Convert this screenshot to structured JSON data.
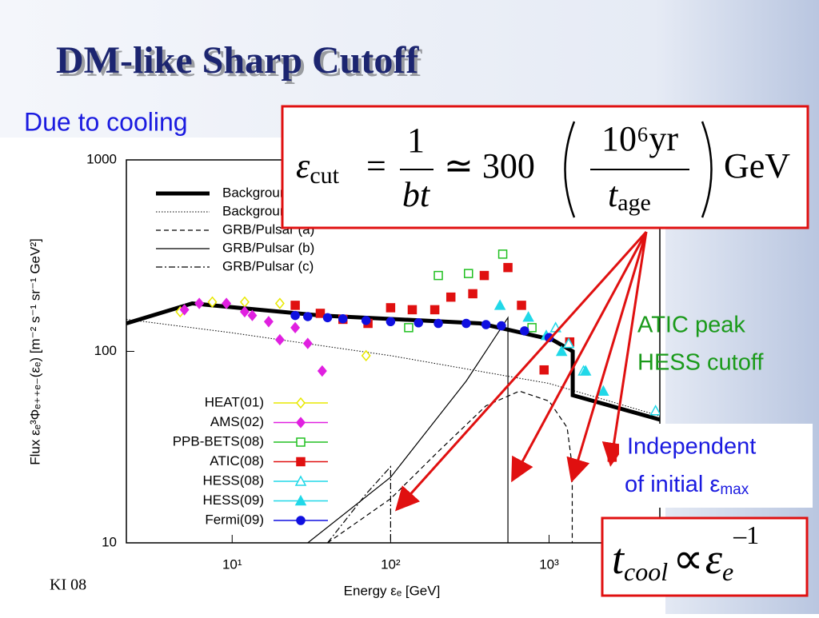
{
  "slide": {
    "title": "DM-like Sharp Cutoff",
    "subtitle": "Due to cooling",
    "footer": "KI 08",
    "note_green": [
      "ATIC peak",
      "HESS cutoff"
    ],
    "note_box": {
      "line1": "Independent",
      "line2": "of initial ε",
      "line2_sub": "max"
    },
    "formula": {
      "lhs": "ε",
      "lhs_sub": "cut",
      "eq": "=",
      "num1": "1",
      "den1": "bt",
      "approx": "≃ 300",
      "num2": "10⁶yr",
      "den2": "t",
      "den2_sub": "age",
      "unit": "GeV"
    },
    "cooling": {
      "t": "t",
      "t_sub": "cool",
      "prop": "∝",
      "e": "ε",
      "e_sub": "e",
      "e_sup": "–1"
    }
  },
  "chart_data": {
    "type": "line",
    "x_label": "Energy εₑ [GeV]",
    "y_label": "Flux εₑ³Φₑ₊₊ₑ₋(εₑ) [m⁻² s⁻¹ sr⁻¹ GeV²]",
    "log_x": true,
    "log_y": true,
    "xlim": [
      2.15,
      5000
    ],
    "ylim": [
      10,
      1000
    ],
    "xticks": [
      {
        "value": 10,
        "label": "10¹"
      },
      {
        "value": 100,
        "label": "10²"
      },
      {
        "value": 1000,
        "label": "10³"
      }
    ],
    "yticks": [
      10,
      100,
      1000
    ],
    "series": [
      {
        "name": "Background",
        "style": "thick",
        "color": "#000000",
        "x": [
          2.15,
          5.6,
          36,
          367,
          1050,
          1410,
          1410,
          5000
        ],
        "values": [
          140,
          178,
          154,
          140,
          115,
          100,
          59,
          44
        ]
      },
      {
        "name": "Background",
        "style": "dotted",
        "color": "#000000",
        "x": [
          2.15,
          10,
          100,
          1000,
          5000
        ],
        "values": [
          147,
          125,
          95,
          68,
          46
        ]
      },
      {
        "name": "GRB/Pulsar (a)",
        "style": "dashed",
        "color": "#000000",
        "x": [
          40,
          100,
          200,
          400,
          650,
          1000,
          1300,
          1400,
          1400
        ],
        "values": [
          10,
          17,
          30,
          52,
          62,
          55,
          40,
          25,
          10
        ]
      },
      {
        "name": "GRB/Pulsar (b)",
        "style": "solid",
        "color": "#000000",
        "x": [
          30,
          100,
          300,
          550,
          550
        ],
        "values": [
          10,
          22,
          70,
          150,
          10
        ]
      },
      {
        "name": "GRB/Pulsar (c)",
        "style": "dashdot",
        "color": "#000000",
        "x": [
          40,
          70,
          100,
          100
        ],
        "values": [
          10,
          18,
          25,
          10
        ]
      },
      {
        "name": "HEAT(01)",
        "marker": "diamond-open",
        "color": "#e8e800",
        "x": [
          4.7,
          7.5,
          12,
          20,
          70
        ],
        "values": [
          161,
          181,
          181,
          178,
          95
        ]
      },
      {
        "name": "AMS(02)",
        "marker": "diamond",
        "color": "#e020e0",
        "x": [
          5,
          6.2,
          9.2,
          12,
          13.4,
          17,
          20,
          25,
          30,
          37
        ],
        "values": [
          165,
          178,
          178,
          161,
          154,
          143,
          115,
          133,
          110,
          79
        ]
      },
      {
        "name": "PPB-BETS(08)",
        "marker": "square-open",
        "color": "#20c020",
        "x": [
          130,
          200,
          310,
          510,
          780
        ],
        "values": [
          133,
          249,
          255,
          322,
          133
        ]
      },
      {
        "name": "ATIC(08)",
        "marker": "square",
        "color": "#e01010",
        "x": [
          25,
          36,
          50,
          72,
          100,
          137,
          190,
          240,
          330,
          390,
          550,
          670,
          930,
          1350,
          2500
        ],
        "values": [
          174,
          158,
          147,
          140,
          169,
          165,
          165,
          192,
          200,
          249,
          274,
          174,
          80,
          112,
          28
        ]
      },
      {
        "name": "HESS(08)",
        "marker": "triangle-open",
        "color": "#20d8e8",
        "x": [
          1100,
          1330,
          1650,
          4700
        ],
        "values": [
          133,
          110,
          79,
          49
        ]
      },
      {
        "name": "HESS(09)",
        "marker": "triangle",
        "color": "#20d8e8",
        "x": [
          490,
          740,
          960,
          1200,
          1700,
          2200
        ],
        "values": [
          174,
          151,
          121,
          100,
          79,
          62
        ]
      },
      {
        "name": "Fermi(09)",
        "marker": "circle",
        "color": "#1010e0",
        "x": [
          25,
          30,
          40,
          50,
          70,
          100,
          150,
          200,
          300,
          400,
          500,
          700,
          1000
        ],
        "values": [
          154,
          152,
          150,
          148,
          145,
          143,
          141,
          140,
          140,
          138,
          136,
          128,
          118
        ]
      }
    ]
  }
}
